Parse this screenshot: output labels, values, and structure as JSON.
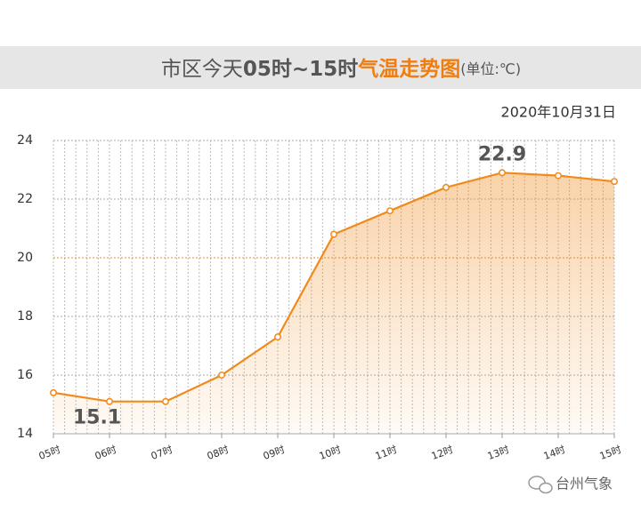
{
  "chart_data": {
    "type": "line",
    "title": [
      "市区今天",
      "05时~15时",
      "气温走势图",
      "(单位:℃)"
    ],
    "date": "2020年10月31日",
    "source": "台州气象",
    "categories": [
      "05时",
      "06时",
      "07时",
      "08时",
      "09时",
      "10时",
      "11时",
      "12时",
      "13时",
      "14时",
      "15时"
    ],
    "values": [
      15.4,
      15.1,
      15.1,
      16.0,
      17.3,
      20.8,
      21.6,
      22.4,
      22.9,
      22.8,
      22.6
    ],
    "value_labels": [
      null,
      "15.1",
      null,
      null,
      null,
      null,
      null,
      null,
      "22.9",
      null,
      null
    ],
    "color": "#f08a1c",
    "area": true,
    "reference_line": 20,
    "ylim": [
      14,
      24
    ],
    "yticks": [
      14,
      16,
      18,
      20,
      22,
      24
    ],
    "grid": true
  }
}
